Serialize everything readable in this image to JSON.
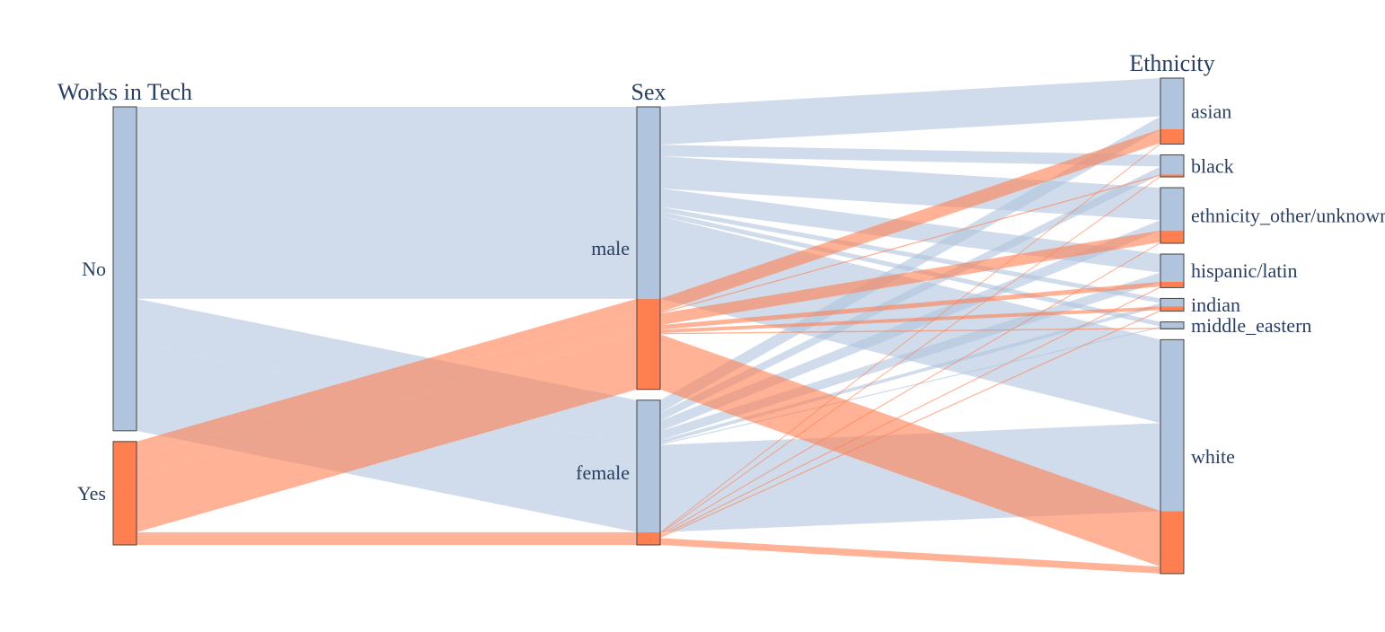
{
  "chart_data": {
    "type": "parallel_categories",
    "dimensions": [
      {
        "title": "Works in Tech",
        "categories": [
          "No",
          "Yes"
        ]
      },
      {
        "title": "Sex",
        "categories": [
          "male",
          "female"
        ]
      },
      {
        "title": "Ethnicity",
        "categories": [
          "asian",
          "black",
          "ethnicity_other/unknown",
          "hispanic/latin",
          "indian",
          "middle_eastern",
          "white"
        ]
      }
    ],
    "color_groups": [
      "No",
      "Yes"
    ],
    "colors": {
      "No": "#b0c4de",
      "Yes": "#ff7f50"
    },
    "paths": [
      {
        "tech": "No",
        "sex": "male",
        "ethnicity": "asian",
        "count": 33
      },
      {
        "tech": "No",
        "sex": "male",
        "ethnicity": "black",
        "count": 10
      },
      {
        "tech": "No",
        "sex": "male",
        "ethnicity": "ethnicity_other/unknown",
        "count": 28
      },
      {
        "tech": "No",
        "sex": "male",
        "ethnicity": "hispanic/latin",
        "count": 16
      },
      {
        "tech": "No",
        "sex": "male",
        "ethnicity": "indian",
        "count": 4
      },
      {
        "tech": "No",
        "sex": "male",
        "ethnicity": "middle_eastern",
        "count": 4
      },
      {
        "tech": "No",
        "sex": "male",
        "ethnicity": "white",
        "count": 72
      },
      {
        "tech": "No",
        "sex": "female",
        "ethnicity": "asian",
        "count": 11
      },
      {
        "tech": "No",
        "sex": "female",
        "ethnicity": "black",
        "count": 7
      },
      {
        "tech": "No",
        "sex": "female",
        "ethnicity": "ethnicity_other/unknown",
        "count": 9
      },
      {
        "tech": "No",
        "sex": "female",
        "ethnicity": "hispanic/latin",
        "count": 8
      },
      {
        "tech": "No",
        "sex": "female",
        "ethnicity": "indian",
        "count": 3
      },
      {
        "tech": "No",
        "sex": "female",
        "ethnicity": "middle_eastern",
        "count": 1
      },
      {
        "tech": "No",
        "sex": "female",
        "ethnicity": "white",
        "count": 76
      },
      {
        "tech": "Yes",
        "sex": "male",
        "ethnicity": "asian",
        "count": 12
      },
      {
        "tech": "Yes",
        "sex": "male",
        "ethnicity": "black",
        "count": 1
      },
      {
        "tech": "Yes",
        "sex": "male",
        "ethnicity": "ethnicity_other/unknown",
        "count": 10
      },
      {
        "tech": "Yes",
        "sex": "male",
        "ethnicity": "hispanic/latin",
        "count": 4
      },
      {
        "tech": "Yes",
        "sex": "male",
        "ethnicity": "indian",
        "count": 3
      },
      {
        "tech": "Yes",
        "sex": "male",
        "ethnicity": "middle_eastern",
        "count": 1
      },
      {
        "tech": "Yes",
        "sex": "male",
        "ethnicity": "white",
        "count": 48
      },
      {
        "tech": "Yes",
        "sex": "female",
        "ethnicity": "asian",
        "count": 1
      },
      {
        "tech": "Yes",
        "sex": "female",
        "ethnicity": "black",
        "count": 1
      },
      {
        "tech": "Yes",
        "sex": "female",
        "ethnicity": "ethnicity_other/unknown",
        "count": 1
      },
      {
        "tech": "Yes",
        "sex": "female",
        "ethnicity": "hispanic/latin",
        "count": 1
      },
      {
        "tech": "Yes",
        "sex": "female",
        "ethnicity": "indian",
        "count": 1
      },
      {
        "tech": "Yes",
        "sex": "female",
        "ethnicity": "middle_eastern",
        "count": 0
      },
      {
        "tech": "Yes",
        "sex": "female",
        "ethnicity": "white",
        "count": 6
      }
    ]
  }
}
